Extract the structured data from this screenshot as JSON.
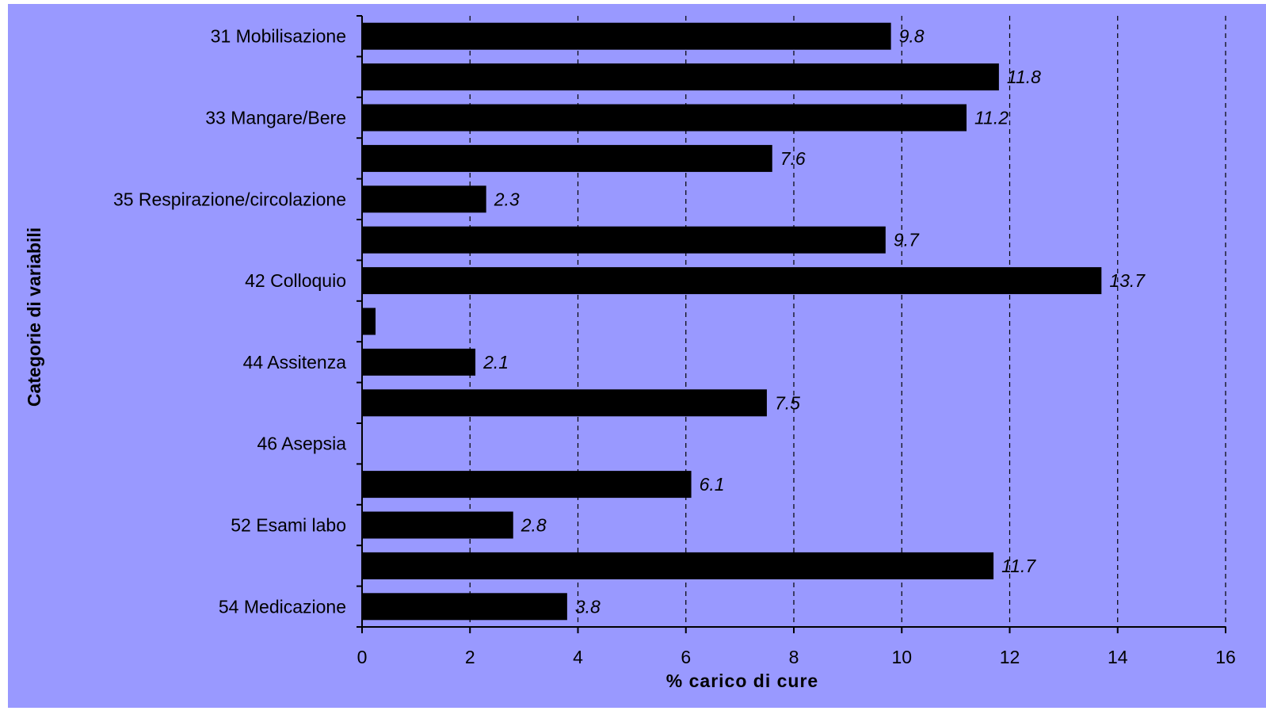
{
  "chart_data": {
    "type": "bar",
    "orientation": "horizontal",
    "categories": [
      "31 Mobilisazione",
      "",
      "33 Mangare/Bere",
      "",
      "35 Respirazione/circolazione",
      "",
      "42 Colloquio",
      "",
      "44 Assitenza",
      "",
      "46 Asepsia",
      "",
      "52 Esami labo",
      "",
      "54 Medicazione"
    ],
    "values": [
      9.8,
      11.8,
      11.2,
      7.6,
      2.3,
      9.7,
      13.7,
      0.25,
      2.1,
      7.5,
      0,
      6.1,
      2.8,
      11.7,
      3.8
    ],
    "data_labels": [
      "9.8",
      "11.8",
      "11.2",
      "7.6",
      "2.3",
      "9.7",
      "13.7",
      "",
      "2.1",
      "7.5",
      "",
      "6.1",
      "2.8",
      "11.7",
      "3.8"
    ],
    "xlabel": "% carico di cure",
    "ylabel": "Categorie di variabili",
    "xlim": [
      0,
      16
    ],
    "xticks": [
      0,
      2,
      4,
      6,
      8,
      10,
      12,
      14,
      16
    ],
    "grid": "vertical dashed",
    "legend": "none",
    "colors": {
      "background": "#9999ff",
      "bar": "#000000",
      "text": "#000000"
    }
  }
}
